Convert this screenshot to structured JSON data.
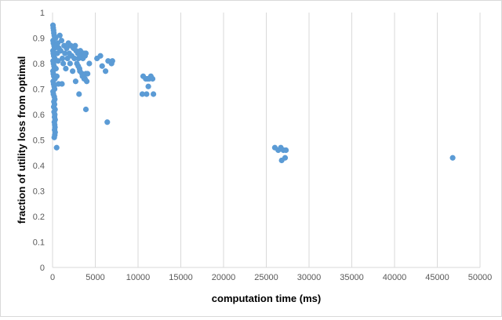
{
  "chart_data": {
    "type": "scatter",
    "title": "",
    "xlabel": "computation time (ms)",
    "ylabel": "fraction of utility loss from optimal",
    "xlim": [
      0,
      50000
    ],
    "ylim": [
      0,
      1
    ],
    "x_ticks": [
      0,
      5000,
      10000,
      15000,
      20000,
      25000,
      30000,
      35000,
      40000,
      45000,
      50000
    ],
    "y_ticks": [
      0,
      0.1,
      0.2,
      0.3,
      0.4,
      0.5,
      0.6,
      0.7,
      0.8,
      0.9,
      1
    ],
    "x_tick_labels": [
      "0",
      "5000",
      "10000",
      "15000",
      "20000",
      "25000",
      "30000",
      "35000",
      "40000",
      "45000",
      "50000"
    ],
    "y_tick_labels": [
      "0",
      "0.1",
      "0.2",
      "0.3",
      "0.4",
      "0.5",
      "0.6",
      "0.7",
      "0.8",
      "0.9",
      "1"
    ],
    "grid": "vertical",
    "legend": "none",
    "marker_color": "#5b9bd5",
    "gridline_color": "#d9d9d9",
    "points": [
      [
        50,
        0.95
      ],
      [
        80,
        0.94
      ],
      [
        120,
        0.93
      ],
      [
        150,
        0.92
      ],
      [
        200,
        0.91
      ],
      [
        250,
        0.9
      ],
      [
        60,
        0.89
      ],
      [
        100,
        0.88
      ],
      [
        180,
        0.87
      ],
      [
        220,
        0.86
      ],
      [
        50,
        0.85
      ],
      [
        90,
        0.84
      ],
      [
        140,
        0.83
      ],
      [
        260,
        0.82
      ],
      [
        60,
        0.81
      ],
      [
        110,
        0.8
      ],
      [
        170,
        0.79
      ],
      [
        210,
        0.78
      ],
      [
        50,
        0.77
      ],
      [
        90,
        0.76
      ],
      [
        150,
        0.75
      ],
      [
        280,
        0.74
      ],
      [
        70,
        0.73
      ],
      [
        120,
        0.72
      ],
      [
        190,
        0.71
      ],
      [
        240,
        0.7
      ],
      [
        60,
        0.69
      ],
      [
        100,
        0.68
      ],
      [
        200,
        0.67
      ],
      [
        260,
        0.66
      ],
      [
        160,
        0.65
      ],
      [
        230,
        0.64
      ],
      [
        140,
        0.63
      ],
      [
        290,
        0.62
      ],
      [
        180,
        0.61
      ],
      [
        260,
        0.6
      ],
      [
        230,
        0.59
      ],
      [
        300,
        0.58
      ],
      [
        210,
        0.57
      ],
      [
        250,
        0.56
      ],
      [
        280,
        0.55
      ],
      [
        240,
        0.54
      ],
      [
        300,
        0.53
      ],
      [
        260,
        0.52
      ],
      [
        200,
        0.51
      ],
      [
        480,
        0.47
      ],
      [
        350,
        0.9
      ],
      [
        450,
        0.87
      ],
      [
        550,
        0.84
      ],
      [
        650,
        0.81
      ],
      [
        400,
        0.78
      ],
      [
        500,
        0.75
      ],
      [
        700,
        0.72
      ],
      [
        600,
        0.88
      ],
      [
        750,
        0.86
      ],
      [
        850,
        0.91
      ],
      [
        950,
        0.85
      ],
      [
        1050,
        0.89
      ],
      [
        1150,
        0.82
      ],
      [
        1250,
        0.8
      ],
      [
        1350,
        0.87
      ],
      [
        1450,
        0.84
      ],
      [
        1550,
        0.78
      ],
      [
        1650,
        0.86
      ],
      [
        1750,
        0.82
      ],
      [
        1850,
        0.88
      ],
      [
        1950,
        0.84
      ],
      [
        2050,
        0.8
      ],
      [
        2150,
        0.87
      ],
      [
        2250,
        0.83
      ],
      [
        2350,
        0.77
      ],
      [
        2450,
        0.86
      ],
      [
        2550,
        0.82
      ],
      [
        2650,
        0.87
      ],
      [
        2750,
        0.85
      ],
      [
        2850,
        0.8
      ],
      [
        2950,
        0.84
      ],
      [
        3050,
        0.82
      ],
      [
        3150,
        0.78
      ],
      [
        3250,
        0.85
      ],
      [
        3350,
        0.83
      ],
      [
        3450,
        0.76
      ],
      [
        3550,
        0.82
      ],
      [
        3650,
        0.84
      ],
      [
        3800,
        0.83
      ],
      [
        3900,
        0.84
      ],
      [
        1100,
        0.72
      ],
      [
        2700,
        0.73
      ],
      [
        3000,
        0.79
      ],
      [
        3200,
        0.77
      ],
      [
        3500,
        0.75
      ],
      [
        3700,
        0.74
      ],
      [
        3900,
        0.76
      ],
      [
        4100,
        0.76
      ],
      [
        4300,
        0.8
      ],
      [
        3800,
        0.74
      ],
      [
        3100,
        0.68
      ],
      [
        3900,
        0.62
      ],
      [
        4000,
        0.73
      ],
      [
        5200,
        0.82
      ],
      [
        5600,
        0.83
      ],
      [
        5800,
        0.79
      ],
      [
        6200,
        0.77
      ],
      [
        6500,
        0.81
      ],
      [
        6900,
        0.8
      ],
      [
        7000,
        0.81
      ],
      [
        6400,
        0.57
      ],
      [
        10500,
        0.68
      ],
      [
        10600,
        0.75
      ],
      [
        10900,
        0.74
      ],
      [
        11100,
        0.74
      ],
      [
        11300,
        0.74
      ],
      [
        11500,
        0.75
      ],
      [
        11700,
        0.74
      ],
      [
        11800,
        0.68
      ],
      [
        11200,
        0.71
      ],
      [
        11000,
        0.68
      ],
      [
        26000,
        0.47
      ],
      [
        26400,
        0.46
      ],
      [
        26700,
        0.47
      ],
      [
        27000,
        0.46
      ],
      [
        27300,
        0.46
      ],
      [
        26800,
        0.42
      ],
      [
        27200,
        0.43
      ],
      [
        46800,
        0.43
      ]
    ]
  }
}
